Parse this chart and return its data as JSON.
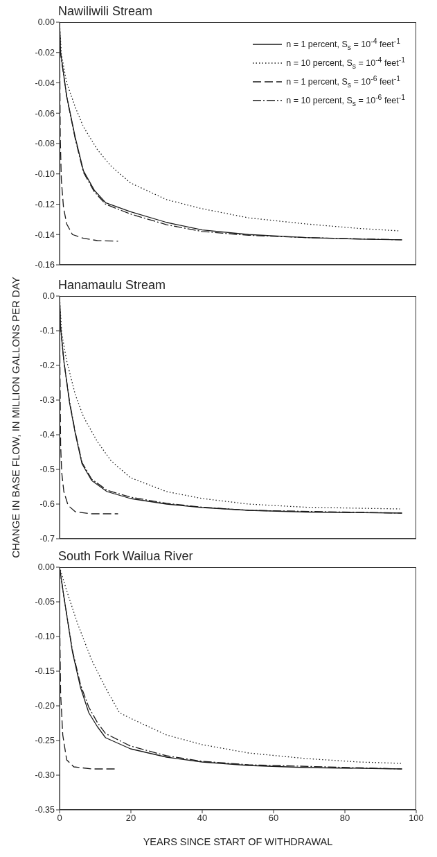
{
  "chart_data": [
    {
      "type": "line",
      "title": "Nawiliwili Stream",
      "legend": "top right",
      "tick_labels": "y",
      "xlim": [
        0,
        100
      ],
      "xticks": [
        0,
        20,
        40,
        60,
        80,
        100
      ],
      "ylim": [
        -0.16,
        0
      ],
      "yticks": [
        {
          "value": 0,
          "label": "0.00"
        },
        {
          "value": -0.02,
          "label": "-0.02"
        },
        {
          "value": -0.04,
          "label": "-0.04"
        },
        {
          "value": -0.06,
          "label": "-0.06"
        },
        {
          "value": -0.08,
          "label": "-0.08"
        },
        {
          "value": -0.1,
          "label": "-0.10"
        },
        {
          "value": -0.12,
          "label": "-0.12"
        },
        {
          "value": -0.14,
          "label": "-0.14"
        },
        {
          "value": -0.16,
          "label": "-0.16"
        }
      ],
      "series": [
        {
          "name": "n = 1 percent, S$_{s}$ = 10$^{-4}$ feet$^{-1}$",
          "color": "#1a1a1a",
          "line_style": "solid",
          "x": [
            0,
            0.3,
            2,
            4.4,
            6.7,
            9.8,
            12.9,
            19.9,
            30,
            40,
            53,
            69,
            84,
            96
          ],
          "values": [
            0,
            -0.02,
            -0.049,
            -0.076,
            -0.098,
            -0.111,
            -0.119,
            -0.125,
            -0.132,
            -0.137,
            -0.14,
            -0.142,
            -0.143,
            -0.1435
          ]
        },
        {
          "name": "n = 10 percent, S$_{s}$ = 10$^{-4}$ feet$^{-1}$",
          "color": "#1a1a1a",
          "line_style": "dotted",
          "x": [
            0,
            0.5,
            2,
            4.4,
            6.7,
            10.6,
            14.5,
            19.9,
            30,
            40,
            53,
            69,
            84,
            95.4
          ],
          "values": [
            0,
            -0.021,
            -0.04,
            -0.056,
            -0.069,
            -0.084,
            -0.095,
            -0.106,
            -0.117,
            -0.123,
            -0.129,
            -0.133,
            -0.136,
            -0.1376
          ]
        },
        {
          "name": "n = 1 percent, S$_{s}$ = 10$^{-6}$ feet$^{-1}$",
          "color": "#1a1a1a",
          "line_style": "dashed",
          "x": [
            0,
            0.1,
            0.2,
            0.5,
            1.1,
            2,
            3.6,
            6.7,
            10.6,
            16.4
          ],
          "values": [
            0,
            -0.04,
            -0.076,
            -0.104,
            -0.122,
            -0.133,
            -0.14,
            -0.1425,
            -0.144,
            -0.1444
          ]
        },
        {
          "name": "n = 10 percent, S$_{s}$ = 10$^{-6}$ feet$^{-1}$",
          "color": "#1a1a1a",
          "line_style": "dashdot",
          "x": [
            0,
            0.3,
            2,
            4.4,
            6.7,
            9.8,
            12.9,
            19.9,
            30,
            40,
            53,
            69,
            96
          ],
          "values": [
            0,
            -0.021,
            -0.049,
            -0.077,
            -0.099,
            -0.112,
            -0.12,
            -0.1265,
            -0.1335,
            -0.138,
            -0.1405,
            -0.142,
            -0.1435
          ]
        }
      ]
    },
    {
      "type": "line",
      "title": "Hanamaulu Stream",
      "ylabel": "CHANGE IN BASE FLOW, IN MILLION GALLONS PER DAY",
      "tick_labels": "y",
      "xlim": [
        0,
        100
      ],
      "xticks": [
        0,
        20,
        40,
        60,
        80,
        100
      ],
      "ylim": [
        -0.7,
        0
      ],
      "yticks": [
        {
          "value": 0,
          "label": "0.0"
        },
        {
          "value": -0.1,
          "label": "-0.1"
        },
        {
          "value": -0.2,
          "label": "-0.2"
        },
        {
          "value": -0.3,
          "label": "-0.3"
        },
        {
          "value": -0.4,
          "label": "-0.4"
        },
        {
          "value": -0.5,
          "label": "-0.5"
        },
        {
          "value": -0.6,
          "label": "-0.6"
        },
        {
          "value": -0.7,
          "label": "-0.7"
        }
      ],
      "series": [
        {
          "color": "#1a1a1a",
          "line_style": "solid",
          "x": [
            0,
            0.3,
            1.2,
            2.8,
            4.4,
            6.3,
            9,
            13.3,
            19.9,
            30,
            40,
            53,
            69,
            96
          ],
          "values": [
            0,
            -0.091,
            -0.187,
            -0.308,
            -0.396,
            -0.484,
            -0.532,
            -0.564,
            -0.584,
            -0.6,
            -0.61,
            -0.618,
            -0.623,
            -0.626
          ]
        },
        {
          "color": "#1a1a1a",
          "line_style": "dotted",
          "x": [
            0,
            0.6,
            2,
            4.4,
            6.7,
            10.6,
            14.5,
            19.9,
            30,
            40,
            53,
            69,
            84,
            95.4
          ],
          "values": [
            0,
            -0.107,
            -0.187,
            -0.284,
            -0.348,
            -0.42,
            -0.476,
            -0.524,
            -0.564,
            -0.584,
            -0.6,
            -0.609,
            -0.612,
            -0.614
          ]
        },
        {
          "color": "#1a1a1a",
          "line_style": "dashed",
          "x": [
            0,
            0.1,
            0.3,
            0.6,
            1.2,
            2.4,
            4.4,
            9,
            16.4
          ],
          "values": [
            0,
            -0.187,
            -0.428,
            -0.508,
            -0.564,
            -0.604,
            -0.622,
            -0.628,
            -0.628
          ]
        },
        {
          "color": "#1a1a1a",
          "line_style": "dashdot",
          "x": [
            0,
            0.3,
            1.2,
            2.8,
            4.4,
            6.3,
            9,
            13.3,
            19.9,
            30,
            40,
            53,
            96
          ],
          "values": [
            0,
            -0.091,
            -0.187,
            -0.304,
            -0.392,
            -0.48,
            -0.528,
            -0.56,
            -0.58,
            -0.598,
            -0.609,
            -0.618,
            -0.626
          ]
        }
      ]
    },
    {
      "type": "line",
      "title": "South Fork Wailua River",
      "xlabel": "YEARS SINCE START OF WITHDRAWAL",
      "xlim": [
        0,
        100
      ],
      "xticks": [
        0,
        20,
        40,
        60,
        80,
        100
      ],
      "ylim": [
        -0.35,
        0
      ],
      "yticks": [
        {
          "value": 0,
          "label": "0.00"
        },
        {
          "value": -0.05,
          "label": "-0.05"
        },
        {
          "value": -0.1,
          "label": "-0.10"
        },
        {
          "value": -0.15,
          "label": "-0.15"
        },
        {
          "value": -0.2,
          "label": "-0.20"
        },
        {
          "value": -0.25,
          "label": "-0.25"
        },
        {
          "value": -0.3,
          "label": "-0.30"
        },
        {
          "value": -0.35,
          "label": "-0.35"
        }
      ],
      "series": [
        {
          "color": "#1a1a1a",
          "line_style": "solid",
          "x": [
            0,
            1.2,
            3.6,
            5.9,
            8.2,
            10.6,
            12.9,
            19.9,
            30,
            40,
            53,
            69,
            96
          ],
          "values": [
            0,
            -0.042,
            -0.122,
            -0.174,
            -0.21,
            -0.23,
            -0.246,
            -0.262,
            -0.274,
            -0.281,
            -0.286,
            -0.289,
            -0.291
          ]
        },
        {
          "color": "#1a1a1a",
          "line_style": "dotted",
          "x": [
            0,
            2,
            5.1,
            9,
            12.9,
            16.8,
            19.9,
            30,
            40,
            53,
            69,
            84,
            96
          ],
          "values": [
            0,
            -0.034,
            -0.082,
            -0.134,
            -0.174,
            -0.21,
            -0.218,
            -0.242,
            -0.256,
            -0.268,
            -0.276,
            -0.281,
            -0.283
          ]
        },
        {
          "color": "#1a1a1a",
          "line_style": "dashed",
          "x": [
            0,
            0.1,
            0.3,
            0.9,
            2,
            4,
            9,
            15.6
          ],
          "values": [
            0,
            -0.102,
            -0.182,
            -0.242,
            -0.278,
            -0.288,
            -0.291,
            -0.291
          ]
        },
        {
          "color": "#1a1a1a",
          "line_style": "dashdot",
          "x": [
            0,
            1.2,
            3.6,
            5.9,
            8.2,
            10.6,
            12.9,
            19.9,
            30,
            40,
            53,
            96
          ],
          "values": [
            0,
            -0.042,
            -0.12,
            -0.17,
            -0.202,
            -0.224,
            -0.24,
            -0.258,
            -0.272,
            -0.28,
            -0.285,
            -0.291
          ]
        }
      ]
    }
  ]
}
